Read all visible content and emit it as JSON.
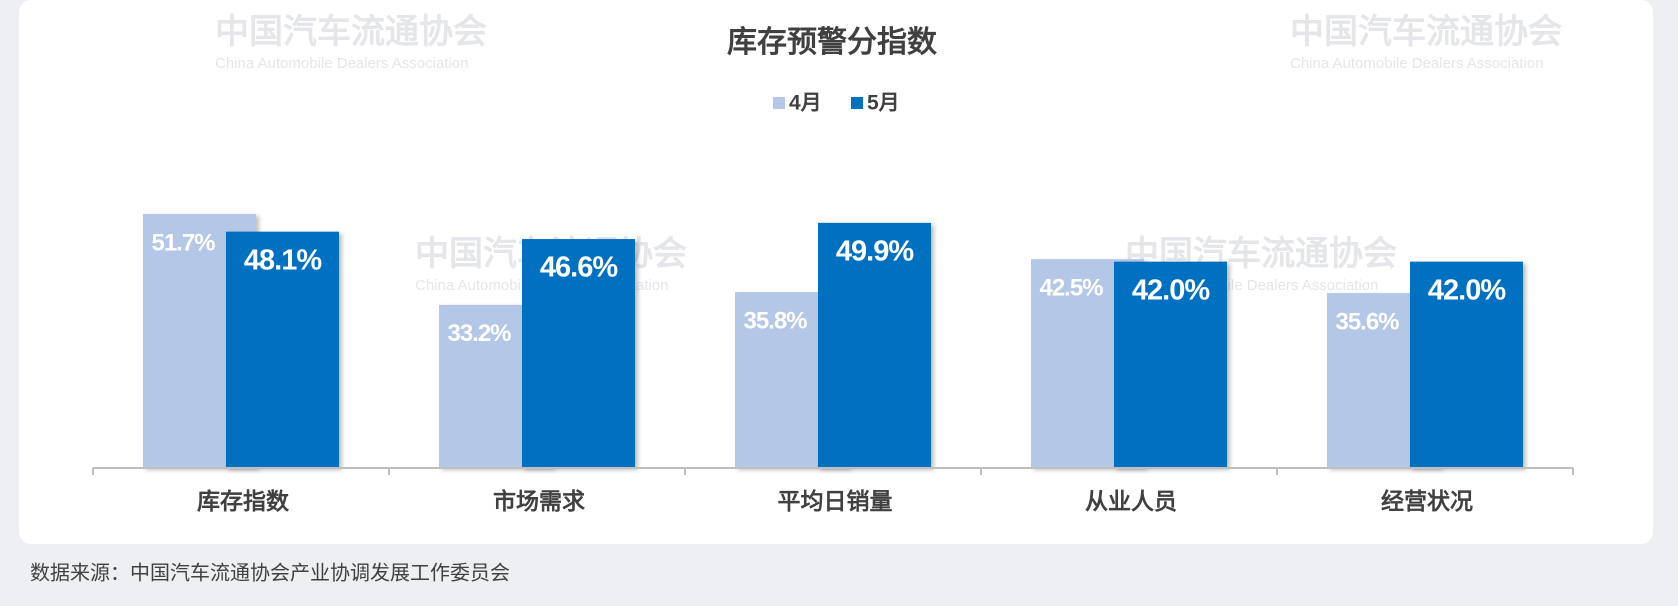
{
  "chart_data": {
    "type": "bar",
    "title": "库存预警分指数",
    "categories": [
      "库存指数",
      "市场需求",
      "平均日销量",
      "从业人员",
      "经营状况"
    ],
    "series": [
      {
        "name": "4月",
        "color": "#b4c7e7",
        "values": [
          51.7,
          33.2,
          35.8,
          42.5,
          35.6
        ],
        "value_labels": [
          "51.7%",
          "33.2%",
          "35.8%",
          "42.5%",
          "35.6%"
        ]
      },
      {
        "name": "5月",
        "color": "#0070c0",
        "values": [
          48.1,
          46.6,
          49.9,
          42.0,
          42.0
        ],
        "value_labels": [
          "48.1%",
          "46.6%",
          "49.9%",
          "42.0%",
          "42.0%"
        ]
      }
    ],
    "legend": "top"
  },
  "watermark": {
    "name": "中国汽车流通协会",
    "english": "China Automobile Dealers Association"
  },
  "source": "数据来源：中国汽车流通协会产业协调发展工作委员会"
}
